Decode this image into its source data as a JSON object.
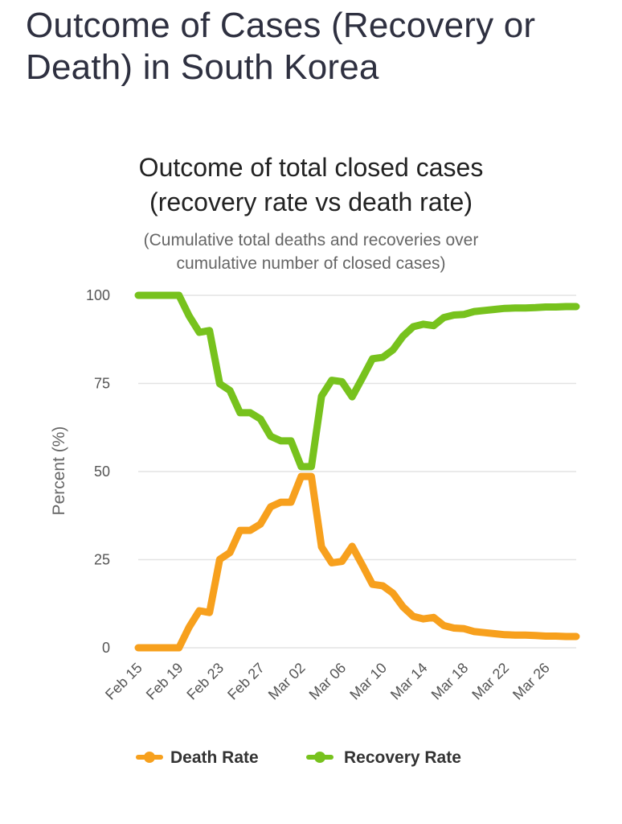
{
  "page": {
    "title": "Outcome of Cases (Recovery or Death) in South Korea"
  },
  "chart_data": {
    "type": "line",
    "title_line1": "Outcome of total closed cases",
    "title_line2": "(recovery rate vs death rate)",
    "subtitle_line1": "(Cumulative total deaths and recoveries over",
    "subtitle_line2": "cumulative number of closed cases)",
    "ylabel": "Percent (%)",
    "xlabel": "",
    "ylim": [
      0,
      100
    ],
    "yticks": [
      "0",
      "25",
      "50",
      "75",
      "100"
    ],
    "xtick_labels": [
      "Feb 15",
      "Feb 19",
      "Feb 23",
      "Feb 27",
      "Mar 02",
      "Mar 06",
      "Mar 10",
      "Mar 14",
      "Mar 18",
      "Mar 22",
      "Mar 26"
    ],
    "grid": true,
    "legend_position": "bottom",
    "colors": {
      "death": "#f7a01d",
      "recovery": "#77c21d"
    },
    "x": [
      "Feb 15",
      "Feb 16",
      "Feb 17",
      "Feb 18",
      "Feb 19",
      "Feb 20",
      "Feb 21",
      "Feb 22",
      "Feb 23",
      "Feb 24",
      "Feb 25",
      "Feb 26",
      "Feb 27",
      "Feb 28",
      "Feb 29",
      "Mar 01",
      "Mar 02",
      "Mar 03",
      "Mar 04",
      "Mar 05",
      "Mar 06",
      "Mar 07",
      "Mar 08",
      "Mar 09",
      "Mar 10",
      "Mar 11",
      "Mar 12",
      "Mar 13",
      "Mar 14",
      "Mar 15",
      "Mar 16",
      "Mar 17",
      "Mar 18",
      "Mar 19",
      "Mar 20",
      "Mar 21",
      "Mar 22",
      "Mar 23",
      "Mar 24",
      "Mar 25",
      "Mar 26",
      "Mar 27",
      "Mar 28",
      "Mar 29"
    ],
    "series": [
      {
        "name": "Death Rate",
        "values": [
          0,
          0,
          0,
          0,
          0,
          5.9,
          10.5,
          10,
          25.1,
          27,
          33.3,
          33.3,
          35.1,
          40,
          41.3,
          41.3,
          48.6,
          48.6,
          28.6,
          24.1,
          24.5,
          28.8,
          23.5,
          18,
          17.6,
          15.5,
          11.6,
          8.9,
          8.2,
          8.6,
          6.3,
          5.6,
          5.4,
          4.6,
          4.3,
          4,
          3.7,
          3.6,
          3.6,
          3.5,
          3.3,
          3.3,
          3.2,
          3.2
        ]
      },
      {
        "name": "Recovery Rate",
        "values": [
          100,
          100,
          100,
          100,
          100,
          94.1,
          89.5,
          90,
          74.9,
          73,
          66.7,
          66.7,
          64.9,
          60,
          58.7,
          58.7,
          51.4,
          51.4,
          71.4,
          75.9,
          75.5,
          71.2,
          76.5,
          82,
          82.4,
          84.5,
          88.4,
          91.1,
          91.8,
          91.4,
          93.7,
          94.4,
          94.6,
          95.4,
          95.7,
          96,
          96.3,
          96.4,
          96.4,
          96.5,
          96.7,
          96.7,
          96.8,
          96.8
        ]
      }
    ]
  }
}
